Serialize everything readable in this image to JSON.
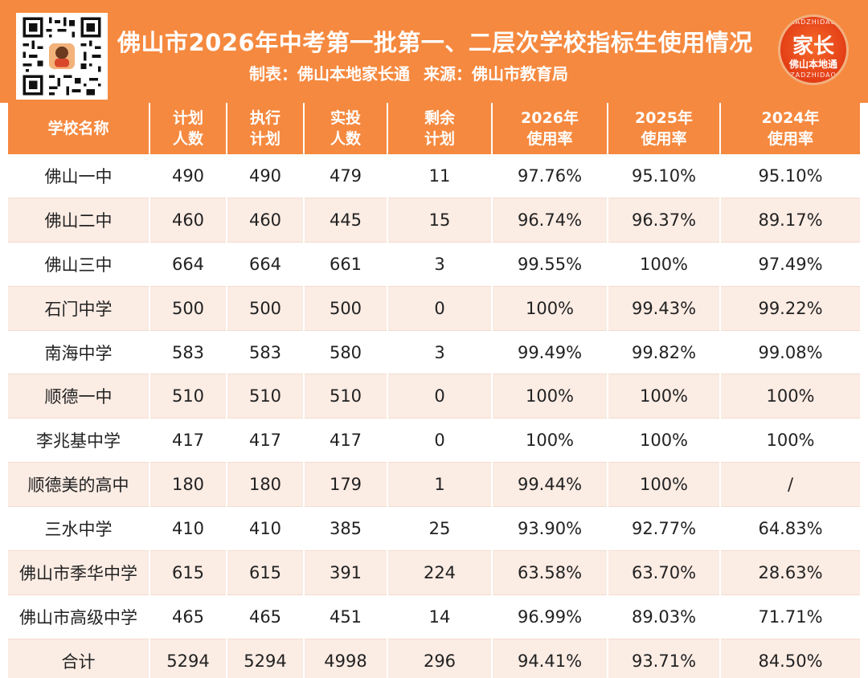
{
  "header": {
    "title": "佛山市2026年中考第一批第一、二层次学校指标生使用情况",
    "maker": "制表：佛山本地家长通",
    "source": "来源：佛山市教育局"
  },
  "logo": {
    "top_text": "ZADZHIDAO",
    "main": "家长",
    "sub": "佛山本地通",
    "bottom_text": "ZADZHIDAO"
  },
  "table": {
    "headers": [
      [
        "学校名称"
      ],
      [
        "计划",
        "人数"
      ],
      [
        "执行",
        "计划"
      ],
      [
        "实投",
        "人数"
      ],
      [
        "剩余",
        "计划"
      ],
      [
        "2026年",
        "使用率"
      ],
      [
        "2025年",
        "使用率"
      ],
      [
        "2024年",
        "使用率"
      ]
    ],
    "rows": [
      [
        "佛山一中",
        "490",
        "490",
        "479",
        "11",
        "97.76%",
        "95.10%",
        "95.10%"
      ],
      [
        "佛山二中",
        "460",
        "460",
        "445",
        "15",
        "96.74%",
        "96.37%",
        "89.17%"
      ],
      [
        "佛山三中",
        "664",
        "664",
        "661",
        "3",
        "99.55%",
        "100%",
        "97.49%"
      ],
      [
        "石门中学",
        "500",
        "500",
        "500",
        "0",
        "100%",
        "99.43%",
        "99.22%"
      ],
      [
        "南海中学",
        "583",
        "583",
        "580",
        "3",
        "99.49%",
        "99.82%",
        "99.08%"
      ],
      [
        "顺德一中",
        "510",
        "510",
        "510",
        "0",
        "100%",
        "100%",
        "100%"
      ],
      [
        "李兆基中学",
        "417",
        "417",
        "417",
        "0",
        "100%",
        "100%",
        "100%"
      ],
      [
        "顺德美的高中",
        "180",
        "180",
        "179",
        "1",
        "99.44%",
        "100%",
        "/"
      ],
      [
        "三水中学",
        "410",
        "410",
        "385",
        "25",
        "93.90%",
        "92.77%",
        "64.83%"
      ],
      [
        "佛山市季华中学",
        "615",
        "615",
        "391",
        "224",
        "63.58%",
        "63.70%",
        "28.63%"
      ],
      [
        "佛山市高级中学",
        "465",
        "465",
        "451",
        "14",
        "96.99%",
        "89.03%",
        "71.71%"
      ],
      [
        "合计",
        "5294",
        "5294",
        "4998",
        "296",
        "94.41%",
        "93.71%",
        "84.50%"
      ]
    ]
  },
  "colors": {
    "header_orange": "#f5893f",
    "row_tint": "#fbece4",
    "logo_red": "#e33d16"
  },
  "icons": {
    "qr": "qr-code-icon",
    "logo": "jiazhang-logo-icon"
  }
}
